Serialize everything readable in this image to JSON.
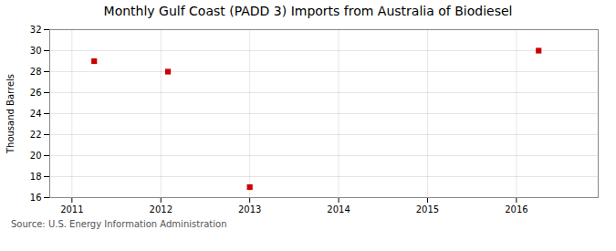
{
  "chart_data": {
    "type": "scatter",
    "title": "Monthly Gulf Coast (PADD 3) Imports from Australia of Biodiesel",
    "ylabel": "Thousand Barrels",
    "annotations": [
      "Source: U.S. Energy Information Administration"
    ],
    "x": [
      2011.25,
      2012.08,
      2013.0,
      2016.25
    ],
    "values": [
      29,
      28,
      17,
      30
    ],
    "color": "#cc0000",
    "marker": "square",
    "xlim": [
      2010.75,
      2016.92
    ],
    "ylim": [
      16,
      32
    ],
    "xticks": [
      2011,
      2012,
      2013,
      2014,
      2015,
      2016
    ],
    "yticks": [
      16,
      18,
      20,
      22,
      24,
      26,
      28,
      30,
      32
    ],
    "grid": true
  }
}
